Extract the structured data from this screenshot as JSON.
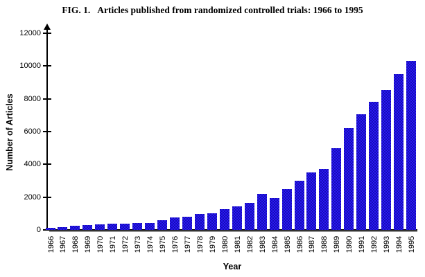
{
  "figure": {
    "title_prefix": "FIG. 1.",
    "title_text": "Articles published from randomized controlled trials: 1966 to 1995"
  },
  "chart_data": {
    "type": "bar",
    "title": "FIG. 1.  Articles published from randomized controlled trials: 1966 to 1995",
    "xlabel": "Year",
    "ylabel": "Number of Articles",
    "ylim": [
      0,
      12000
    ],
    "ytick_step": 2000,
    "ytick_labels": [
      "0",
      "2000",
      "4000",
      "6000",
      "8000",
      "10000",
      "12000"
    ],
    "grid": false,
    "legend_position": "none",
    "bar_color": "#2113d8",
    "bar_color_light": "#2b1bf2",
    "bar_color_dark": "#150bb8",
    "categories": [
      "1966",
      "1967",
      "1968",
      "1969",
      "1970",
      "1971",
      "1972",
      "1973",
      "1974",
      "1975",
      "1976",
      "1977",
      "1978",
      "1979",
      "1980",
      "1981",
      "1982",
      "1983",
      "1984",
      "1985",
      "1986",
      "1987",
      "1988",
      "1989",
      "1990",
      "1991",
      "1992",
      "1993",
      "1994",
      "1995"
    ],
    "values": [
      110,
      170,
      240,
      300,
      340,
      360,
      390,
      410,
      430,
      590,
      780,
      820,
      980,
      1020,
      1250,
      1420,
      1650,
      2180,
      1950,
      2510,
      2980,
      3500,
      3720,
      5000,
      6200,
      7060,
      7800,
      8530,
      9490,
      10300
    ]
  }
}
